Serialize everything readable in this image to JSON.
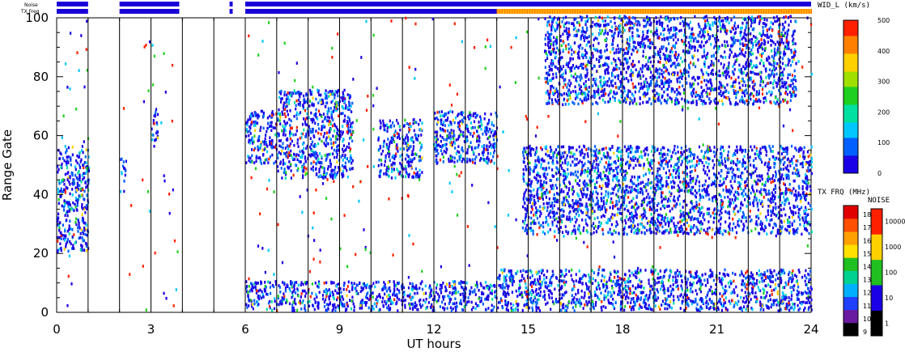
{
  "chart_data": {
    "type": "heatmap",
    "xlabel": "UT hours",
    "ylabel": "Range Gate",
    "xlim": [
      0,
      24
    ],
    "ylim": [
      0,
      100
    ],
    "xticks": [
      0,
      3,
      6,
      9,
      12,
      15,
      18,
      21,
      24
    ],
    "yticks": [
      0,
      20,
      40,
      60,
      80,
      100
    ],
    "vertical_lines_hours": [
      1,
      2,
      3,
      4,
      5,
      6,
      7,
      8,
      9,
      10,
      11,
      12,
      13,
      14,
      15,
      16,
      17,
      18,
      19,
      20,
      21,
      22,
      23
    ],
    "status_bars": {
      "noise_label": "Noise",
      "txfreq_label": "TX Freq",
      "segments": [
        [
          0,
          1
        ],
        [
          2,
          3.9
        ],
        [
          5.5,
          5.6
        ],
        [
          6,
          24
        ]
      ],
      "txfreq_orange_range": [
        14,
        24
      ]
    },
    "data_bands": [
      {
        "t0": 0,
        "t1": 1,
        "g0": 20,
        "g1": 56
      },
      {
        "t0": 2,
        "t1": 2.2,
        "g0": 44,
        "g1": 52
      },
      {
        "t0": 3,
        "t1": 3.2,
        "g0": 55,
        "g1": 68
      },
      {
        "t0": 6,
        "t1": 7,
        "g0": 50,
        "g1": 68
      },
      {
        "t0": 7,
        "t1": 9.4,
        "g0": 45,
        "g1": 75
      },
      {
        "t0": 10.2,
        "t1": 11.6,
        "g0": 45,
        "g1": 65
      },
      {
        "t0": 12,
        "t1": 14,
        "g0": 50,
        "g1": 68
      },
      {
        "t0": 14.8,
        "t1": 24,
        "g0": 26,
        "g1": 56
      },
      {
        "t0": 15.5,
        "t1": 23.5,
        "g0": 70,
        "g1": 100
      },
      {
        "t0": 6,
        "t1": 14,
        "g0": 0,
        "g1": 10
      },
      {
        "t0": 14,
        "t1": 24,
        "g0": 0,
        "g1": 14
      }
    ],
    "colorbar_width": {
      "title": "WID_L (km/s)",
      "ticks": [
        0,
        100,
        200,
        300,
        400,
        500
      ]
    },
    "colorbar_txfreq": {
      "title": "TX FRQ (MHz)",
      "ticks": [
        9,
        10,
        11,
        12,
        13,
        14,
        15,
        16,
        17,
        18
      ]
    },
    "colorbar_noise": {
      "title": "NOISE",
      "ticks": [
        1,
        10,
        100,
        1000,
        10000
      ]
    },
    "colors": {
      "scale": [
        "#1a00e6",
        "#0060ff",
        "#00c8ff",
        "#00e0a0",
        "#20d020",
        "#a0e000",
        "#ffd000",
        "#ff8000",
        "#ff2000"
      ],
      "status_blue": "#1a00d8",
      "status_orange": "#ffb000",
      "status_green": "#20d020"
    }
  }
}
